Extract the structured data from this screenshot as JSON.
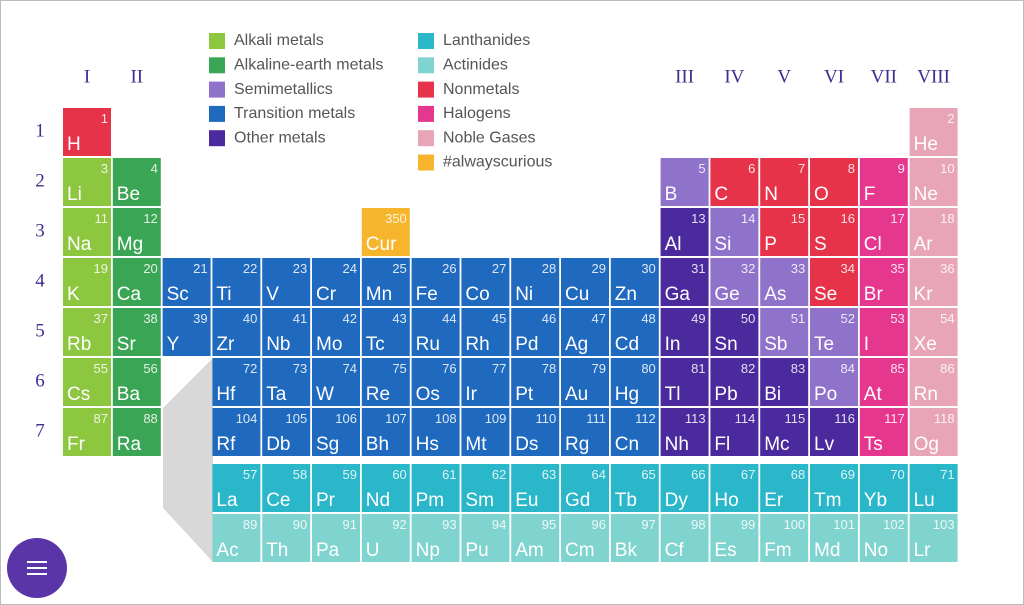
{
  "header": {
    "groups": [
      "I",
      "II",
      "III",
      "IV",
      "V",
      "VI",
      "VII",
      "VIII"
    ],
    "periods": [
      "1",
      "2",
      "3",
      "4",
      "5",
      "6",
      "7"
    ]
  },
  "legend": [
    {
      "label": "Alkali metals",
      "color": "#8dc63f"
    },
    {
      "label": "Alkaline-earth metals",
      "color": "#3aa655"
    },
    {
      "label": "Semimetallics",
      "color": "#8f72c9"
    },
    {
      "label": "Transition metals",
      "color": "#1f69bf"
    },
    {
      "label": "Other metals",
      "color": "#4a2a9c"
    },
    {
      "label": "Lanthanides",
      "color": "#2ab7c9"
    },
    {
      "label": "Actinides",
      "color": "#80d4cf"
    },
    {
      "label": "Nonmetals",
      "color": "#e6334a"
    },
    {
      "label": "Halogens",
      "color": "#e6378f"
    },
    {
      "label": "Noble Gases",
      "color": "#e8a5b8"
    },
    {
      "label": "#alwayscurious",
      "color": "#f6b52d"
    }
  ],
  "elements": [
    {
      "symbol": "H",
      "number": 1,
      "category": 7
    },
    {
      "symbol": "He",
      "number": 2,
      "category": 9
    },
    {
      "symbol": "Li",
      "number": 3,
      "category": 0
    },
    {
      "symbol": "Be",
      "number": 4,
      "category": 1
    },
    {
      "symbol": "B",
      "number": 5,
      "category": 2
    },
    {
      "symbol": "C",
      "number": 6,
      "category": 7
    },
    {
      "symbol": "N",
      "number": 7,
      "category": 7
    },
    {
      "symbol": "O",
      "number": 8,
      "category": 7
    },
    {
      "symbol": "F",
      "number": 9,
      "category": 8
    },
    {
      "symbol": "Ne",
      "number": 10,
      "category": 9
    },
    {
      "symbol": "Na",
      "number": 11,
      "category": 0
    },
    {
      "symbol": "Mg",
      "number": 12,
      "category": 1
    },
    {
      "symbol": "Al",
      "number": 13,
      "category": 4
    },
    {
      "symbol": "Si",
      "number": 14,
      "category": 2
    },
    {
      "symbol": "P",
      "number": 15,
      "category": 7
    },
    {
      "symbol": "S",
      "number": 16,
      "category": 7
    },
    {
      "symbol": "Cl",
      "number": 17,
      "category": 8
    },
    {
      "symbol": "Ar",
      "number": 18,
      "category": 9
    },
    {
      "symbol": "K",
      "number": 19,
      "category": 0
    },
    {
      "symbol": "Ca",
      "number": 20,
      "category": 1
    },
    {
      "symbol": "Sc",
      "number": 21,
      "category": 3
    },
    {
      "symbol": "Ti",
      "number": 22,
      "category": 3
    },
    {
      "symbol": "V",
      "number": 23,
      "category": 3
    },
    {
      "symbol": "Cr",
      "number": 24,
      "category": 3
    },
    {
      "symbol": "Mn",
      "number": 25,
      "category": 3
    },
    {
      "symbol": "Fe",
      "number": 26,
      "category": 3
    },
    {
      "symbol": "Co",
      "number": 27,
      "category": 3
    },
    {
      "symbol": "Ni",
      "number": 28,
      "category": 3
    },
    {
      "symbol": "Cu",
      "number": 29,
      "category": 3
    },
    {
      "symbol": "Zn",
      "number": 30,
      "category": 3
    },
    {
      "symbol": "Ga",
      "number": 31,
      "category": 4
    },
    {
      "symbol": "Ge",
      "number": 32,
      "category": 2
    },
    {
      "symbol": "As",
      "number": 33,
      "category": 2
    },
    {
      "symbol": "Se",
      "number": 34,
      "category": 7
    },
    {
      "symbol": "Br",
      "number": 35,
      "category": 8
    },
    {
      "symbol": "Kr",
      "number": 36,
      "category": 9
    },
    {
      "symbol": "Rb",
      "number": 37,
      "category": 0
    },
    {
      "symbol": "Sr",
      "number": 38,
      "category": 1
    },
    {
      "symbol": "Y",
      "number": 39,
      "category": 3
    },
    {
      "symbol": "Zr",
      "number": 40,
      "category": 3
    },
    {
      "symbol": "Nb",
      "number": 41,
      "category": 3
    },
    {
      "symbol": "Mo",
      "number": 42,
      "category": 3
    },
    {
      "symbol": "Tc",
      "number": 43,
      "category": 3
    },
    {
      "symbol": "Ru",
      "number": 44,
      "category": 3
    },
    {
      "symbol": "Rh",
      "number": 45,
      "category": 3
    },
    {
      "symbol": "Pd",
      "number": 46,
      "category": 3
    },
    {
      "symbol": "Ag",
      "number": 47,
      "category": 3
    },
    {
      "symbol": "Cd",
      "number": 48,
      "category": 3
    },
    {
      "symbol": "In",
      "number": 49,
      "category": 4
    },
    {
      "symbol": "Sn",
      "number": 50,
      "category": 4
    },
    {
      "symbol": "Sb",
      "number": 51,
      "category": 2
    },
    {
      "symbol": "Te",
      "number": 52,
      "category": 2
    },
    {
      "symbol": "I",
      "number": 53,
      "category": 8
    },
    {
      "symbol": "Xe",
      "number": 54,
      "category": 9
    },
    {
      "symbol": "Cs",
      "number": 55,
      "category": 0
    },
    {
      "symbol": "Ba",
      "number": 56,
      "category": 1
    },
    {
      "symbol": "La",
      "number": 57,
      "category": 5
    },
    {
      "symbol": "Ce",
      "number": 58,
      "category": 5
    },
    {
      "symbol": "Pr",
      "number": 59,
      "category": 5
    },
    {
      "symbol": "Nd",
      "number": 60,
      "category": 5
    },
    {
      "symbol": "Pm",
      "number": 61,
      "category": 5
    },
    {
      "symbol": "Sm",
      "number": 62,
      "category": 5
    },
    {
      "symbol": "Eu",
      "number": 63,
      "category": 5
    },
    {
      "symbol": "Gd",
      "number": 64,
      "category": 5
    },
    {
      "symbol": "Tb",
      "number": 65,
      "category": 5
    },
    {
      "symbol": "Dy",
      "number": 66,
      "category": 5
    },
    {
      "symbol": "Ho",
      "number": 67,
      "category": 5
    },
    {
      "symbol": "Er",
      "number": 68,
      "category": 5
    },
    {
      "symbol": "Tm",
      "number": 69,
      "category": 5
    },
    {
      "symbol": "Yb",
      "number": 70,
      "category": 5
    },
    {
      "symbol": "Lu",
      "number": 71,
      "category": 5
    },
    {
      "symbol": "Hf",
      "number": 72,
      "category": 3
    },
    {
      "symbol": "Ta",
      "number": 73,
      "category": 3
    },
    {
      "symbol": "W",
      "number": 74,
      "category": 3
    },
    {
      "symbol": "Re",
      "number": 75,
      "category": 3
    },
    {
      "symbol": "Os",
      "number": 76,
      "category": 3
    },
    {
      "symbol": "Ir",
      "number": 77,
      "category": 3
    },
    {
      "symbol": "Pt",
      "number": 78,
      "category": 3
    },
    {
      "symbol": "Au",
      "number": 79,
      "category": 3
    },
    {
      "symbol": "Hg",
      "number": 80,
      "category": 3
    },
    {
      "symbol": "Tl",
      "number": 81,
      "category": 4
    },
    {
      "symbol": "Pb",
      "number": 82,
      "category": 4
    },
    {
      "symbol": "Bi",
      "number": 83,
      "category": 4
    },
    {
      "symbol": "Po",
      "number": 84,
      "category": 2
    },
    {
      "symbol": "At",
      "number": 85,
      "category": 8
    },
    {
      "symbol": "Rn",
      "number": 86,
      "category": 9
    },
    {
      "symbol": "Fr",
      "number": 87,
      "category": 0
    },
    {
      "symbol": "Ra",
      "number": 88,
      "category": 1
    },
    {
      "symbol": "Ac",
      "number": 89,
      "category": 6
    },
    {
      "symbol": "Th",
      "number": 90,
      "category": 6
    },
    {
      "symbol": "Pa",
      "number": 91,
      "category": 6
    },
    {
      "symbol": "U",
      "number": 92,
      "category": 6
    },
    {
      "symbol": "Np",
      "number": 93,
      "category": 6
    },
    {
      "symbol": "Pu",
      "number": 94,
      "category": 6
    },
    {
      "symbol": "Am",
      "number": 95,
      "category": 6
    },
    {
      "symbol": "Cm",
      "number": 96,
      "category": 6
    },
    {
      "symbol": "Bk",
      "number": 97,
      "category": 6
    },
    {
      "symbol": "Cf",
      "number": 98,
      "category": 6
    },
    {
      "symbol": "Es",
      "number": 99,
      "category": 6
    },
    {
      "symbol": "Fm",
      "number": 100,
      "category": 6
    },
    {
      "symbol": "Md",
      "number": 101,
      "category": 6
    },
    {
      "symbol": "No",
      "number": 102,
      "category": 6
    },
    {
      "symbol": "Lr",
      "number": 103,
      "category": 6
    },
    {
      "symbol": "Rf",
      "number": 104,
      "category": 3
    },
    {
      "symbol": "Db",
      "number": 105,
      "category": 3
    },
    {
      "symbol": "Sg",
      "number": 106,
      "category": 3
    },
    {
      "symbol": "Bh",
      "number": 107,
      "category": 3
    },
    {
      "symbol": "Hs",
      "number": 108,
      "category": 3
    },
    {
      "symbol": "Mt",
      "number": 109,
      "category": 3
    },
    {
      "symbol": "Ds",
      "number": 110,
      "category": 3
    },
    {
      "symbol": "Rg",
      "number": 111,
      "category": 3
    },
    {
      "symbol": "Cn",
      "number": 112,
      "category": 3
    },
    {
      "symbol": "Nh",
      "number": 113,
      "category": 4
    },
    {
      "symbol": "Fl",
      "number": 114,
      "category": 4
    },
    {
      "symbol": "Mc",
      "number": 115,
      "category": 4
    },
    {
      "symbol": "Lv",
      "number": 116,
      "category": 4
    },
    {
      "symbol": "Ts",
      "number": 117,
      "category": 8
    },
    {
      "symbol": "Og",
      "number": 118,
      "category": 9
    },
    {
      "symbol": "Cur",
      "number": 350,
      "category": 10
    }
  ]
}
